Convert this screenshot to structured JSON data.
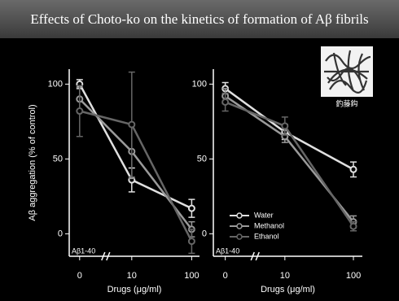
{
  "header": {
    "title": "Effects of Choto-ko on the kinetics of formation of Aβ fibrils",
    "inset_caption": "釣藤鈎"
  },
  "chart_data": [
    {
      "type": "line",
      "categories": [
        "0",
        "10",
        "100"
      ],
      "xlabel": "Drugs (μg/ml)",
      "ylabel": "Aβ aggregation (% of control)",
      "annotation": "Aβ1-40",
      "ylim": [
        -15,
        110
      ],
      "yticks": [
        0,
        50,
        100
      ],
      "series": [
        {
          "color": "#e0e0e0",
          "values": [
            100,
            36,
            17
          ],
          "errors": [
            3,
            8,
            6
          ]
        },
        {
          "color": "#9a9a9a",
          "values": [
            90,
            55,
            3
          ],
          "errors": [
            8,
            18,
            5
          ]
        },
        {
          "color": "#666666",
          "values": [
            82,
            73,
            -5
          ],
          "errors": [
            17,
            35,
            8
          ]
        }
      ]
    },
    {
      "type": "line",
      "categories": [
        "0",
        "10",
        "100"
      ],
      "xlabel": "Drugs (μg/ml)",
      "annotation": "Aβ1-40",
      "ylim": [
        -15,
        110
      ],
      "yticks": [
        0,
        50,
        100
      ],
      "legend": "lower-left",
      "series": [
        {
          "name": "Water",
          "color": "#e0e0e0",
          "values": [
            97,
            68,
            43
          ],
          "errors": [
            4,
            5,
            5
          ]
        },
        {
          "name": "Methanol",
          "color": "#9a9a9a",
          "values": [
            92,
            65,
            8
          ],
          "errors": [
            5,
            4,
            4
          ]
        },
        {
          "name": "Ethanol",
          "color": "#666666",
          "values": [
            88,
            72,
            5
          ],
          "errors": [
            6,
            6,
            3
          ]
        }
      ]
    }
  ]
}
